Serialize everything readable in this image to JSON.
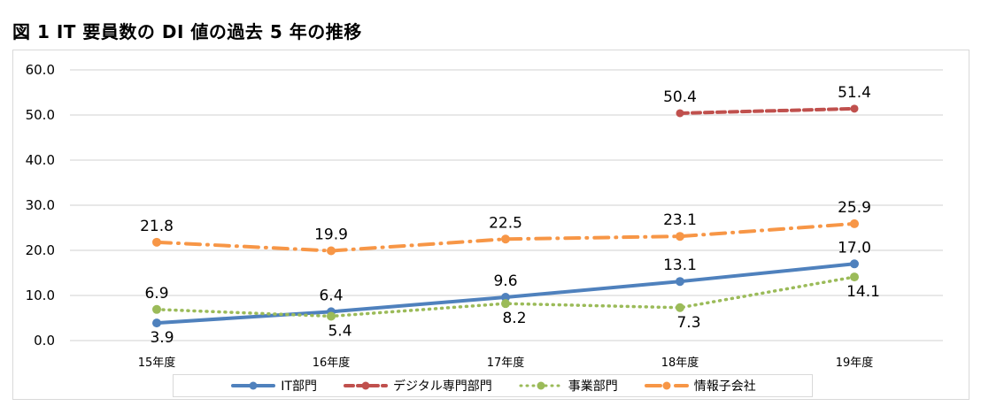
{
  "title": "図 1  IT 要員数の DI 値の過去 5 年の推移",
  "chart_data": {
    "type": "line",
    "title": "図 1  IT 要員数の DI 値の過去 5 年の推移",
    "xlabel": "",
    "ylabel": "",
    "categories": [
      "15年度",
      "16年度",
      "17年度",
      "18年度",
      "19年度"
    ],
    "ylim": [
      0,
      60
    ],
    "yticks": [
      "0.0",
      "10.0",
      "20.0",
      "30.0",
      "40.0",
      "50.0",
      "60.0"
    ],
    "grid": true,
    "legend_position": "bottom",
    "series": [
      {
        "name": "IT部門",
        "color": "#4f81bd",
        "style": "solid",
        "values": [
          3.9,
          6.4,
          9.6,
          13.1,
          17.0
        ],
        "labels": [
          "3.9",
          "6.4",
          "9.6",
          "13.1",
          "17.0"
        ],
        "label_pos": [
          "below",
          "above",
          "above",
          "above",
          "above"
        ]
      },
      {
        "name": "デジタル専門部門",
        "color": "#c0504d",
        "style": "dash",
        "values": [
          null,
          null,
          null,
          50.4,
          51.4
        ],
        "labels": [
          "",
          "",
          "",
          "50.4",
          "51.4"
        ],
        "label_pos": [
          "above",
          "above",
          "above",
          "above",
          "above"
        ]
      },
      {
        "name": "事業部門",
        "color": "#9bbb59",
        "style": "dot",
        "values": [
          6.9,
          5.4,
          8.2,
          7.3,
          14.1
        ],
        "labels": [
          "6.9",
          "5.4",
          "8.2",
          "7.3",
          "14.1"
        ],
        "label_pos": [
          "above",
          "below",
          "below",
          "below",
          "below"
        ]
      },
      {
        "name": "情報子会社",
        "color": "#f79646",
        "style": "dashdot",
        "values": [
          21.8,
          19.9,
          22.5,
          23.1,
          25.9
        ],
        "labels": [
          "21.8",
          "19.9",
          "22.5",
          "23.1",
          "25.9"
        ],
        "label_pos": [
          "above",
          "above",
          "above",
          "above",
          "above"
        ]
      }
    ]
  }
}
